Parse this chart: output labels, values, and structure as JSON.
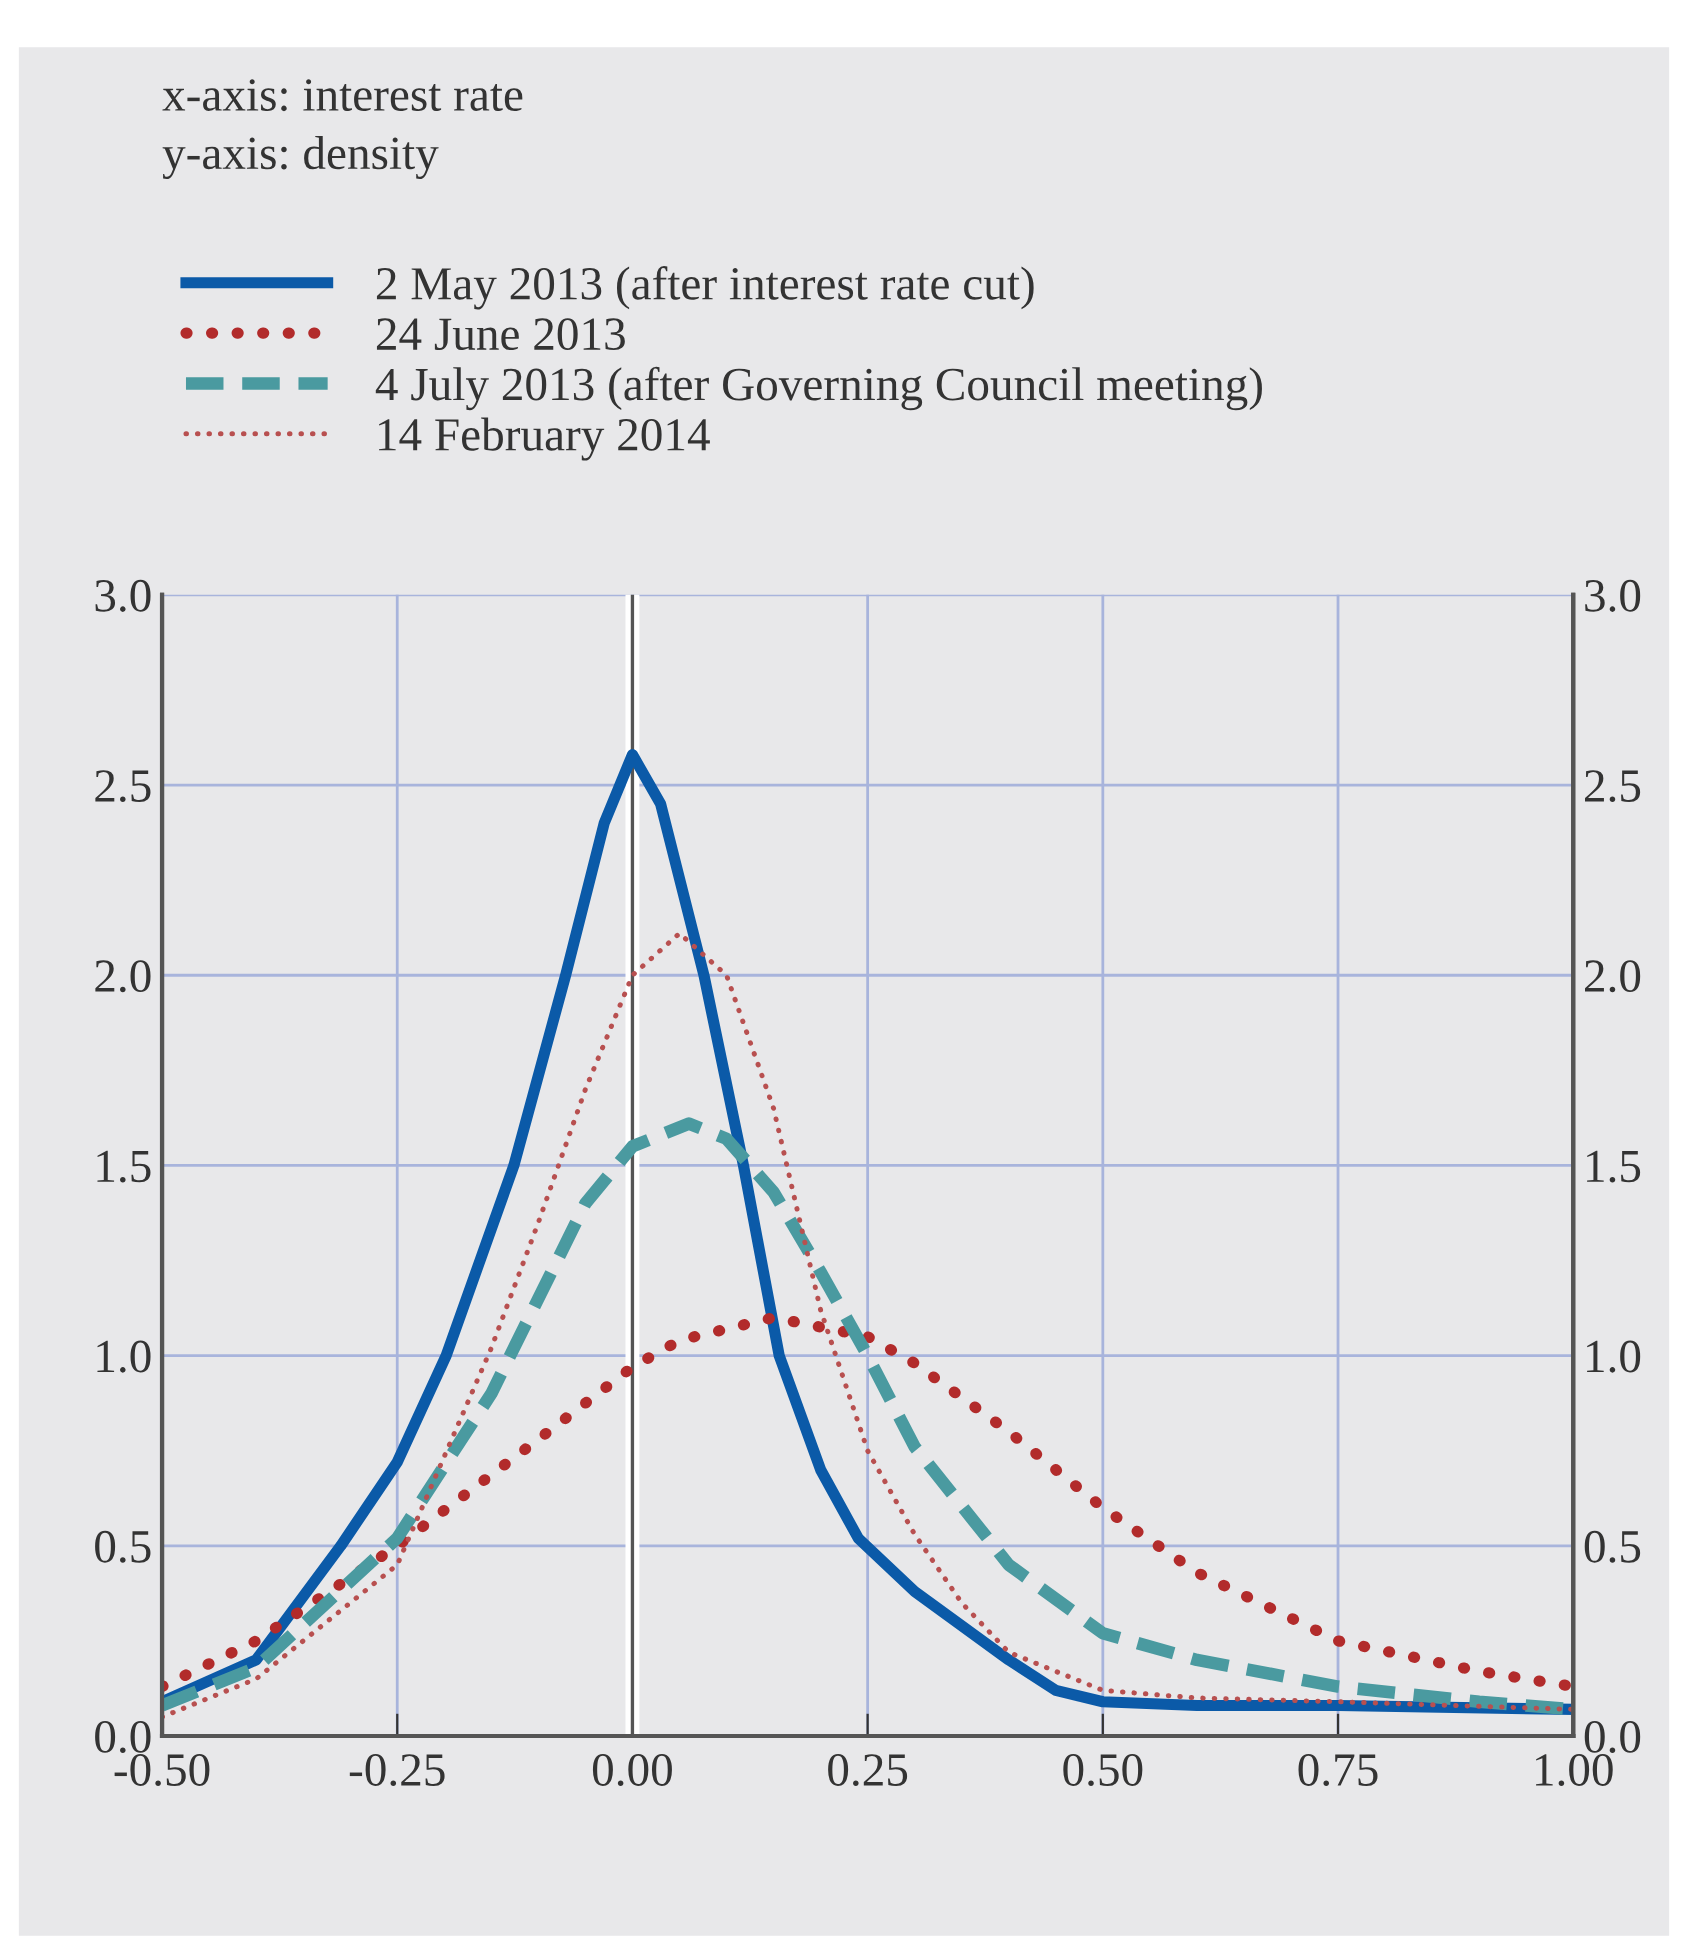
{
  "chart_data": {
    "type": "line",
    "annotations": [
      "x-axis: interest rate",
      "y-axis: density"
    ],
    "legend": "top left",
    "grid": true,
    "marker": "none",
    "xlim": [
      -0.5,
      1.0
    ],
    "xticks": [
      {
        "value": -0.5,
        "label": "-0.50"
      },
      {
        "value": -0.25,
        "label": "-0.25"
      },
      {
        "value": 0,
        "label": "0.00"
      },
      {
        "value": 0.25,
        "label": "0.25"
      },
      {
        "value": 0.5,
        "label": "0.50"
      },
      {
        "value": 0.75,
        "label": "0.75"
      },
      {
        "value": 1.0,
        "label": "1.00"
      }
    ],
    "ylim": [
      0,
      3
    ],
    "yticks": [
      {
        "value": 0,
        "label": "0.0"
      },
      {
        "value": 0.5,
        "label": "0.5"
      },
      {
        "value": 1,
        "label": "1.0"
      },
      {
        "value": 1.5,
        "label": "1.5"
      },
      {
        "value": 2,
        "label": "2.0"
      },
      {
        "value": 2.5,
        "label": "2.5"
      },
      {
        "value": 3,
        "label": "3.0"
      }
    ],
    "y2lim": [
      0,
      3
    ],
    "y2ticks": [
      {
        "value": 0,
        "label": "0.0"
      },
      {
        "value": 0.5,
        "label": "0.5"
      },
      {
        "value": 1,
        "label": "1.0"
      },
      {
        "value": 1.5,
        "label": "1.5"
      },
      {
        "value": 2,
        "label": "2.0"
      },
      {
        "value": 2.5,
        "label": "2.5"
      },
      {
        "value": 3,
        "label": "3.0"
      }
    ],
    "ref_lines": [
      {
        "axis": "x",
        "value": 0,
        "color": "#555555"
      }
    ],
    "series": [
      {
        "name": "2 May 2013 (after interest rate cut)",
        "color": "#0b5aa8",
        "line_style": "solid",
        "x": [
          -0.5,
          -0.4,
          -0.31,
          -0.25,
          -0.198,
          -0.126,
          -0.071,
          -0.03,
          0,
          0.03,
          0.076,
          0.118,
          0.156,
          0.2,
          0.24,
          0.3,
          0.4,
          0.45,
          0.5,
          0.6,
          0.75,
          1.0
        ],
        "values": [
          0.09,
          0.2,
          0.5,
          0.72,
          1.0,
          1.5,
          2.0,
          2.4,
          2.58,
          2.45,
          2.0,
          1.5,
          1.0,
          0.7,
          0.52,
          0.38,
          0.2,
          0.12,
          0.09,
          0.08,
          0.08,
          0.07
        ]
      },
      {
        "name": "24 June 2013",
        "color": "#b22b2b",
        "line_style": "dotted",
        "x": [
          -0.5,
          -0.4,
          -0.25,
          -0.1,
          0,
          0.05,
          0.15,
          0.25,
          0.3,
          0.4,
          0.5,
          0.6,
          0.75,
          0.9,
          1.0
        ],
        "values": [
          0.13,
          0.25,
          0.5,
          0.78,
          0.97,
          1.04,
          1.1,
          1.05,
          0.98,
          0.8,
          0.6,
          0.43,
          0.25,
          0.17,
          0.13
        ]
      },
      {
        "name": "4 July 2013 (after Governing Council meeting)",
        "color": "#4a9aa0",
        "line_style": "dashed",
        "x": [
          -0.5,
          -0.4,
          -0.25,
          -0.15,
          -0.1,
          -0.05,
          0,
          0.06,
          0.1,
          0.15,
          0.2,
          0.25,
          0.3,
          0.4,
          0.5,
          0.6,
          0.75,
          0.9,
          1.0
        ],
        "values": [
          0.08,
          0.18,
          0.52,
          0.9,
          1.15,
          1.4,
          1.55,
          1.61,
          1.57,
          1.43,
          1.22,
          1.0,
          0.76,
          0.45,
          0.27,
          0.2,
          0.13,
          0.09,
          0.07
        ]
      },
      {
        "name": "14 February 2014",
        "color": "#b85050",
        "line_style": "dotted",
        "x": [
          -0.5,
          -0.4,
          -0.25,
          -0.15,
          -0.1,
          -0.05,
          0,
          0.05,
          0.1,
          0.15,
          0.2,
          0.25,
          0.3,
          0.35,
          0.4,
          0.5,
          0.6,
          0.75,
          1.0
        ],
        "values": [
          0.05,
          0.15,
          0.45,
          1.02,
          1.35,
          1.7,
          2.0,
          2.11,
          2.0,
          1.65,
          1.12,
          0.75,
          0.53,
          0.35,
          0.22,
          0.12,
          0.1,
          0.09,
          0.07
        ]
      }
    ]
  }
}
